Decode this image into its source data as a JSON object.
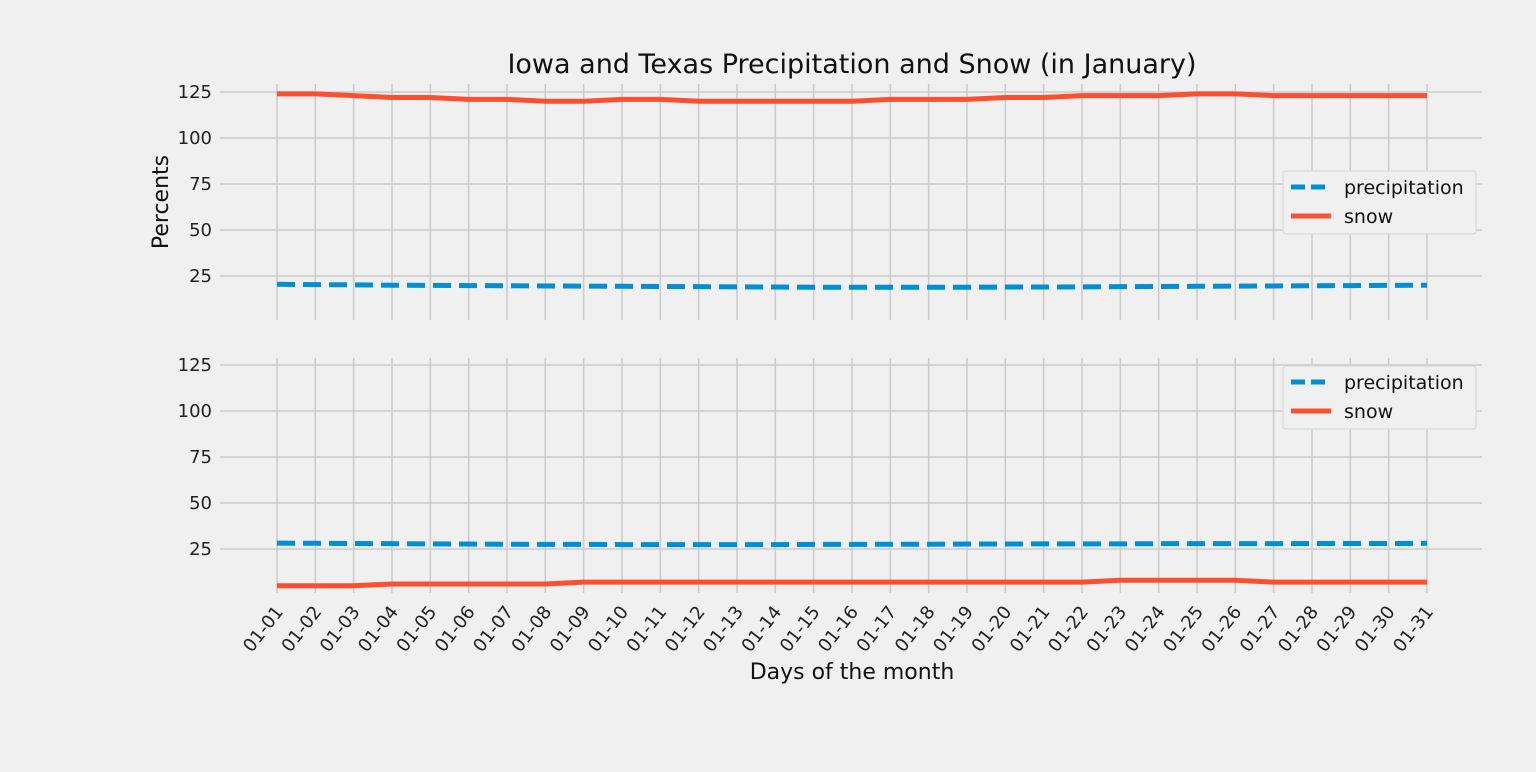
{
  "title": "Iowa and Texas Precipitation and Snow (in January)",
  "chart_data": {
    "type": "line",
    "categories": [
      "01-01",
      "01-02",
      "01-03",
      "01-04",
      "01-05",
      "01-06",
      "01-07",
      "01-08",
      "01-09",
      "01-10",
      "01-11",
      "01-12",
      "01-13",
      "01-14",
      "01-15",
      "01-16",
      "01-17",
      "01-18",
      "01-19",
      "01-20",
      "01-21",
      "01-22",
      "01-23",
      "01-24",
      "01-25",
      "01-26",
      "01-27",
      "01-28",
      "01-29",
      "01-30",
      "01-31"
    ],
    "xlabel": "Days of the month",
    "yticks": [
      25,
      50,
      75,
      100,
      125
    ],
    "ylim": [
      0,
      128
    ],
    "grid": true,
    "legend_placement": "right",
    "colors": {
      "precipitation": "#008fd5",
      "snow": "#fc4f30",
      "grid": "#cbcbcb",
      "background": "#f0f0f0"
    },
    "panels": [
      {
        "ylabel": "Percents",
        "legend_position": "center-right",
        "series": [
          {
            "name": "precipitation",
            "style": "dashed",
            "values": [
              20.5,
              20.3,
              20.2,
              20.0,
              19.9,
              19.8,
              19.7,
              19.6,
              19.5,
              19.4,
              19.3,
              19.2,
              19.1,
              19.0,
              18.9,
              18.9,
              18.9,
              18.9,
              18.9,
              19.0,
              19.0,
              19.1,
              19.2,
              19.3,
              19.4,
              19.5,
              19.6,
              19.7,
              19.8,
              19.9,
              20.0
            ]
          },
          {
            "name": "snow",
            "style": "solid",
            "values": [
              124,
              124,
              123,
              122,
              122,
              121,
              121,
              120,
              120,
              121,
              121,
              120,
              120,
              120,
              120,
              120,
              121,
              121,
              121,
              122,
              122,
              123,
              123,
              123,
              124,
              124,
              123,
              123,
              123,
              123,
              123
            ]
          }
        ]
      },
      {
        "ylabel": "",
        "legend_position": "upper-right",
        "series": [
          {
            "name": "precipitation",
            "style": "dashed",
            "values": [
              28.2,
              28.1,
              28.0,
              27.9,
              27.8,
              27.7,
              27.6,
              27.5,
              27.5,
              27.4,
              27.4,
              27.4,
              27.4,
              27.4,
              27.5,
              27.5,
              27.6,
              27.6,
              27.7,
              27.7,
              27.8,
              27.8,
              27.8,
              27.9,
              27.9,
              27.9,
              27.9,
              28.0,
              28.0,
              28.0,
              28.1
            ]
          },
          {
            "name": "snow",
            "style": "solid",
            "values": [
              5,
              5,
              5,
              6,
              6,
              6,
              6,
              6,
              7,
              7,
              7,
              7,
              7,
              7,
              7,
              7,
              7,
              7,
              7,
              7,
              7,
              7,
              8,
              8,
              8,
              8,
              7,
              7,
              7,
              7,
              7
            ]
          }
        ]
      }
    ]
  }
}
